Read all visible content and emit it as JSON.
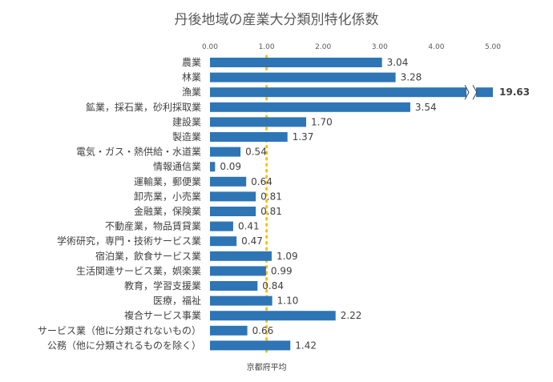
{
  "chart_data": {
    "type": "bar",
    "orientation": "horizontal",
    "title": "丹後地域の産業大分類別特化係数",
    "xlim": [
      0,
      5
    ],
    "x_ticks": [
      "0.00",
      "1.00",
      "2.00",
      "3.00",
      "4.00",
      "5.00"
    ],
    "x_tick_values": [
      0,
      1,
      2,
      3,
      4,
      5
    ],
    "categories": [
      "農業",
      "林業",
      "漁業",
      "鉱業，採石業，砂利採取業",
      "建設業",
      "製造業",
      "電気・ガス・熱供給・水道業",
      "情報通信業",
      "運輸業，郵便業",
      "卸売業，小売業",
      "金融業，保険業",
      "不動産業，物品賃貸業",
      "学術研究，専門・技術サービス業",
      "宿泊業，飲食サービス業",
      "生活関連サービス業，娯楽業",
      "教育，学習支援業",
      "医療，福祉",
      "複合サービス事業",
      "サービス業（他に分類されないもの）",
      "公務（他に分類されるものを除く）"
    ],
    "values": [
      3.04,
      3.28,
      19.63,
      3.54,
      1.7,
      1.37,
      0.54,
      0.09,
      0.64,
      0.81,
      0.81,
      0.41,
      0.47,
      1.09,
      0.99,
      0.84,
      1.1,
      2.22,
      0.66,
      1.42
    ],
    "value_labels": [
      "3.04",
      "3.28",
      "19.63",
      "3.54",
      "1.70",
      "1.37",
      "0.54",
      "0.09",
      "0.64",
      "0.81",
      "0.81",
      "0.41",
      "0.47",
      "1.09",
      "0.99",
      "0.84",
      "1.10",
      "2.22",
      "0.66",
      "1.42"
    ],
    "axis_break_category": "漁業",
    "reference_line": {
      "value": 1.0,
      "label": "京都府平均",
      "color": "#FFC000",
      "style": "dotted"
    },
    "bar_color": "#2E75B6",
    "grid": false
  }
}
